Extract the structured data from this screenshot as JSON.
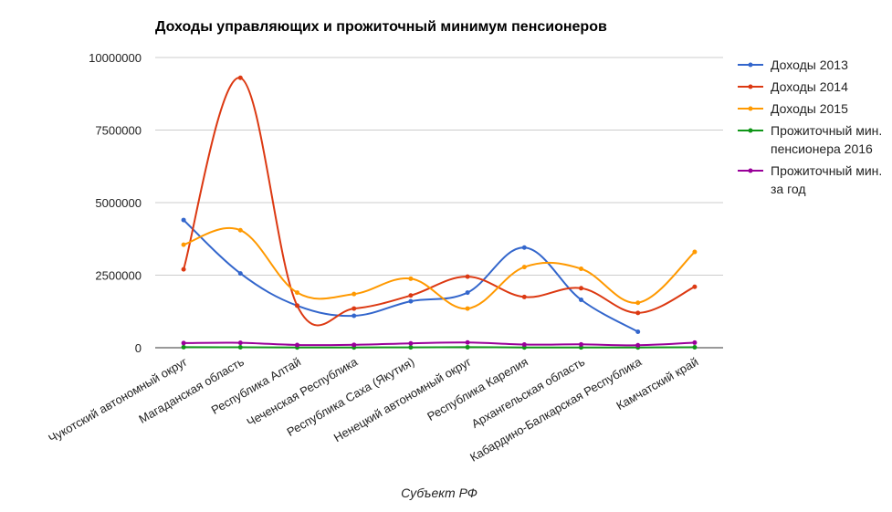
{
  "chart_data": {
    "type": "line",
    "title": "Доходы управляющих и прожиточный минимум пенсионеров",
    "xlabel": "Субъект РФ",
    "ylabel": "",
    "ylim": [
      0,
      10000000
    ],
    "yticks": [
      0,
      2500000,
      5000000,
      7500000,
      10000000
    ],
    "ytick_labels": [
      "0",
      "2500000",
      "5000000",
      "7500000",
      "10000000"
    ],
    "grid": true,
    "legend_position": "right",
    "categories": [
      "Чукотский автономный округ",
      "Магаданская область",
      "Республика Алтай",
      "Чеченская Республика",
      "Республика Саха (Якутия)",
      "Ненецкий автономный округ",
      "Республика Карелия",
      "Архангельская область",
      "Кабардино-Балкарская Республика",
      "Камчатский край"
    ],
    "series": [
      {
        "name": "Доходы 2013",
        "color": "#3366cc",
        "values": [
          4400000,
          2560000,
          1450000,
          1100000,
          1600000,
          1900000,
          3450000,
          1650000,
          550000,
          null
        ]
      },
      {
        "name": "Доходы 2014",
        "color": "#dc3912",
        "values": [
          2700000,
          9300000,
          1450000,
          1350000,
          1800000,
          2450000,
          1750000,
          2050000,
          1200000,
          2100000
        ]
      },
      {
        "name": "Доходы 2015",
        "color": "#ff9900",
        "values": [
          3550000,
          4050000,
          1900000,
          1850000,
          2380000,
          1350000,
          2780000,
          2720000,
          1550000,
          3300000
        ]
      },
      {
        "name": "Прожиточный мин. пенсионера 2016",
        "color": "#109618",
        "values": [
          19000,
          15500,
          8200,
          8200,
          13500,
          17500,
          9800,
          10000,
          8000,
          16000
        ]
      },
      {
        "name": "Прожиточный мин. за год",
        "color": "#990099",
        "values": [
          160000,
          170000,
          95000,
          100000,
          150000,
          180000,
          110000,
          115000,
          85000,
          175000
        ]
      }
    ]
  }
}
